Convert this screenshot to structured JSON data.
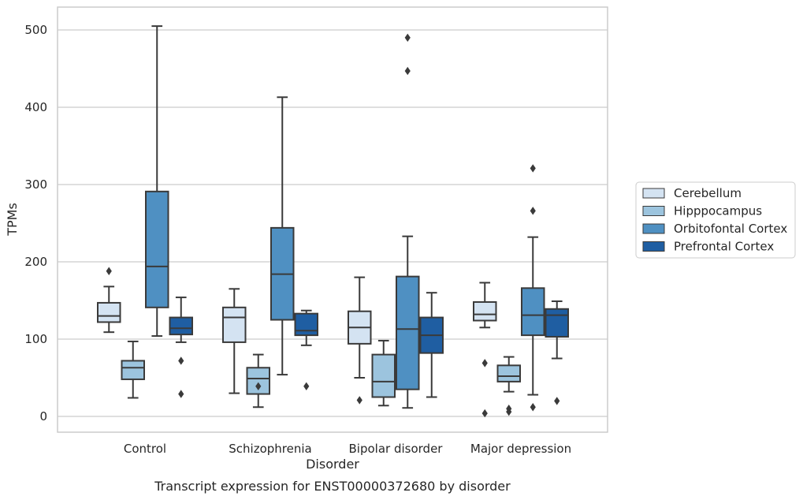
{
  "caption": "Transcript expression for ENST00000372680 by disorder",
  "colors": {
    "Cerebellum": "#d4e3f2",
    "Hipppocampus": "#9cc4de",
    "Orbitofontal Cortex": "#4f90c2",
    "Prefrontal Cortex": "#1f5ea2",
    "line": "#3a3a3a",
    "grid": "#cccccc",
    "frame": "#cccccc"
  },
  "chart_data": {
    "type": "box",
    "title": "",
    "xlabel": "Disorder",
    "ylabel": "TPMs",
    "ylim": [
      -20,
      530
    ],
    "yticks": [
      0,
      100,
      200,
      300,
      400,
      500
    ],
    "grid": "horizontal",
    "legend_position": "right",
    "categories": [
      "Control",
      "Schizophrenia",
      "Bipolar disorder",
      "Major depression"
    ],
    "series": [
      {
        "name": "Cerebellum",
        "boxes": [
          {
            "whisker_low": 109,
            "q1": 122,
            "median": 130,
            "q3": 147,
            "whisker_high": 168,
            "outliers": [
              188
            ]
          },
          {
            "whisker_low": 30,
            "q1": 96,
            "median": 128,
            "q3": 141,
            "whisker_high": 165,
            "outliers": []
          },
          {
            "whisker_low": 50,
            "q1": 94,
            "median": 115,
            "q3": 136,
            "whisker_high": 180,
            "outliers": [
              21
            ]
          },
          {
            "whisker_low": 115,
            "q1": 124,
            "median": 132,
            "q3": 148,
            "whisker_high": 173,
            "outliers": [
              69,
              4
            ]
          }
        ]
      },
      {
        "name": "Hipppocampus",
        "boxes": [
          {
            "whisker_low": 24,
            "q1": 48,
            "median": 63,
            "q3": 72,
            "whisker_high": 97,
            "outliers": []
          },
          {
            "whisker_low": 12,
            "q1": 29,
            "median": 49,
            "q3": 63,
            "whisker_high": 80,
            "outliers": [
              39
            ]
          },
          {
            "whisker_low": 14,
            "q1": 25,
            "median": 45,
            "q3": 80,
            "whisker_high": 98,
            "outliers": []
          },
          {
            "whisker_low": 32,
            "q1": 45,
            "median": 52,
            "q3": 66,
            "whisker_high": 77,
            "outliers": [
              10,
              6
            ]
          }
        ]
      },
      {
        "name": "Orbitofontal Cortex",
        "boxes": [
          {
            "whisker_low": 104,
            "q1": 141,
            "median": 194,
            "q3": 291,
            "whisker_high": 505,
            "outliers": []
          },
          {
            "whisker_low": 54,
            "q1": 125,
            "median": 184,
            "q3": 244,
            "whisker_high": 413,
            "outliers": []
          },
          {
            "whisker_low": 11,
            "q1": 35,
            "median": 113,
            "q3": 181,
            "whisker_high": 233,
            "outliers": [
              490,
              447
            ]
          },
          {
            "whisker_low": 28,
            "q1": 105,
            "median": 131,
            "q3": 166,
            "whisker_high": 232,
            "outliers": [
              321,
              266,
              12
            ]
          }
        ]
      },
      {
        "name": "Prefrontal Cortex",
        "boxes": [
          {
            "whisker_low": 96,
            "q1": 106,
            "median": 114,
            "q3": 128,
            "whisker_high": 154,
            "outliers": [
              72,
              29
            ]
          },
          {
            "whisker_low": 92,
            "q1": 105,
            "median": 111,
            "q3": 133,
            "whisker_high": 137,
            "outliers": [
              39
            ]
          },
          {
            "whisker_low": 25,
            "q1": 82,
            "median": 105,
            "q3": 128,
            "whisker_high": 160,
            "outliers": []
          },
          {
            "whisker_low": 75,
            "q1": 103,
            "median": 131,
            "q3": 139,
            "whisker_high": 149,
            "outliers": [
              20
            ]
          }
        ]
      }
    ]
  }
}
